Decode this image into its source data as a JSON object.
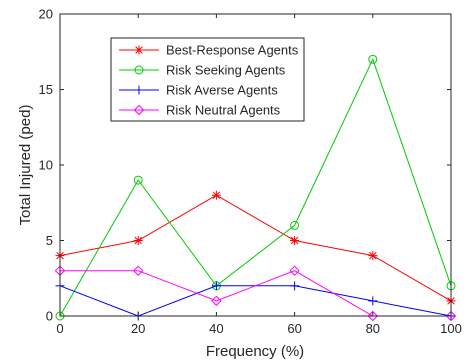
{
  "chart_data": {
    "type": "line",
    "title": "",
    "xlabel": "Frequency (%)",
    "ylabel": "Total Injured (ped)",
    "x": [
      0,
      20,
      40,
      60,
      80,
      100
    ],
    "xlim": [
      0,
      100
    ],
    "ylim": [
      0,
      20
    ],
    "xticks": [
      "0",
      "20",
      "40",
      "60",
      "80",
      "100"
    ],
    "yticks": [
      "0",
      "5",
      "10",
      "15",
      "20"
    ],
    "grid": false,
    "legend_position": "top-left",
    "series": [
      {
        "name": "Best-Response Agents",
        "values": [
          4,
          5,
          8,
          5,
          4,
          1
        ],
        "color": "#ff0000",
        "marker": "asterisk"
      },
      {
        "name": "Risk Seeking Agents",
        "values": [
          0,
          9,
          2,
          6,
          17,
          2
        ],
        "color": "#00cc00",
        "marker": "circle"
      },
      {
        "name": "Risk Averse Agents",
        "values": [
          2,
          0,
          2,
          2,
          1,
          0
        ],
        "color": "#0000ff",
        "marker": "plus"
      },
      {
        "name": "Risk Neutral Agents",
        "values": [
          3,
          3,
          1,
          3,
          0,
          0
        ],
        "color": "#ff00ff",
        "marker": "diamond"
      }
    ]
  }
}
